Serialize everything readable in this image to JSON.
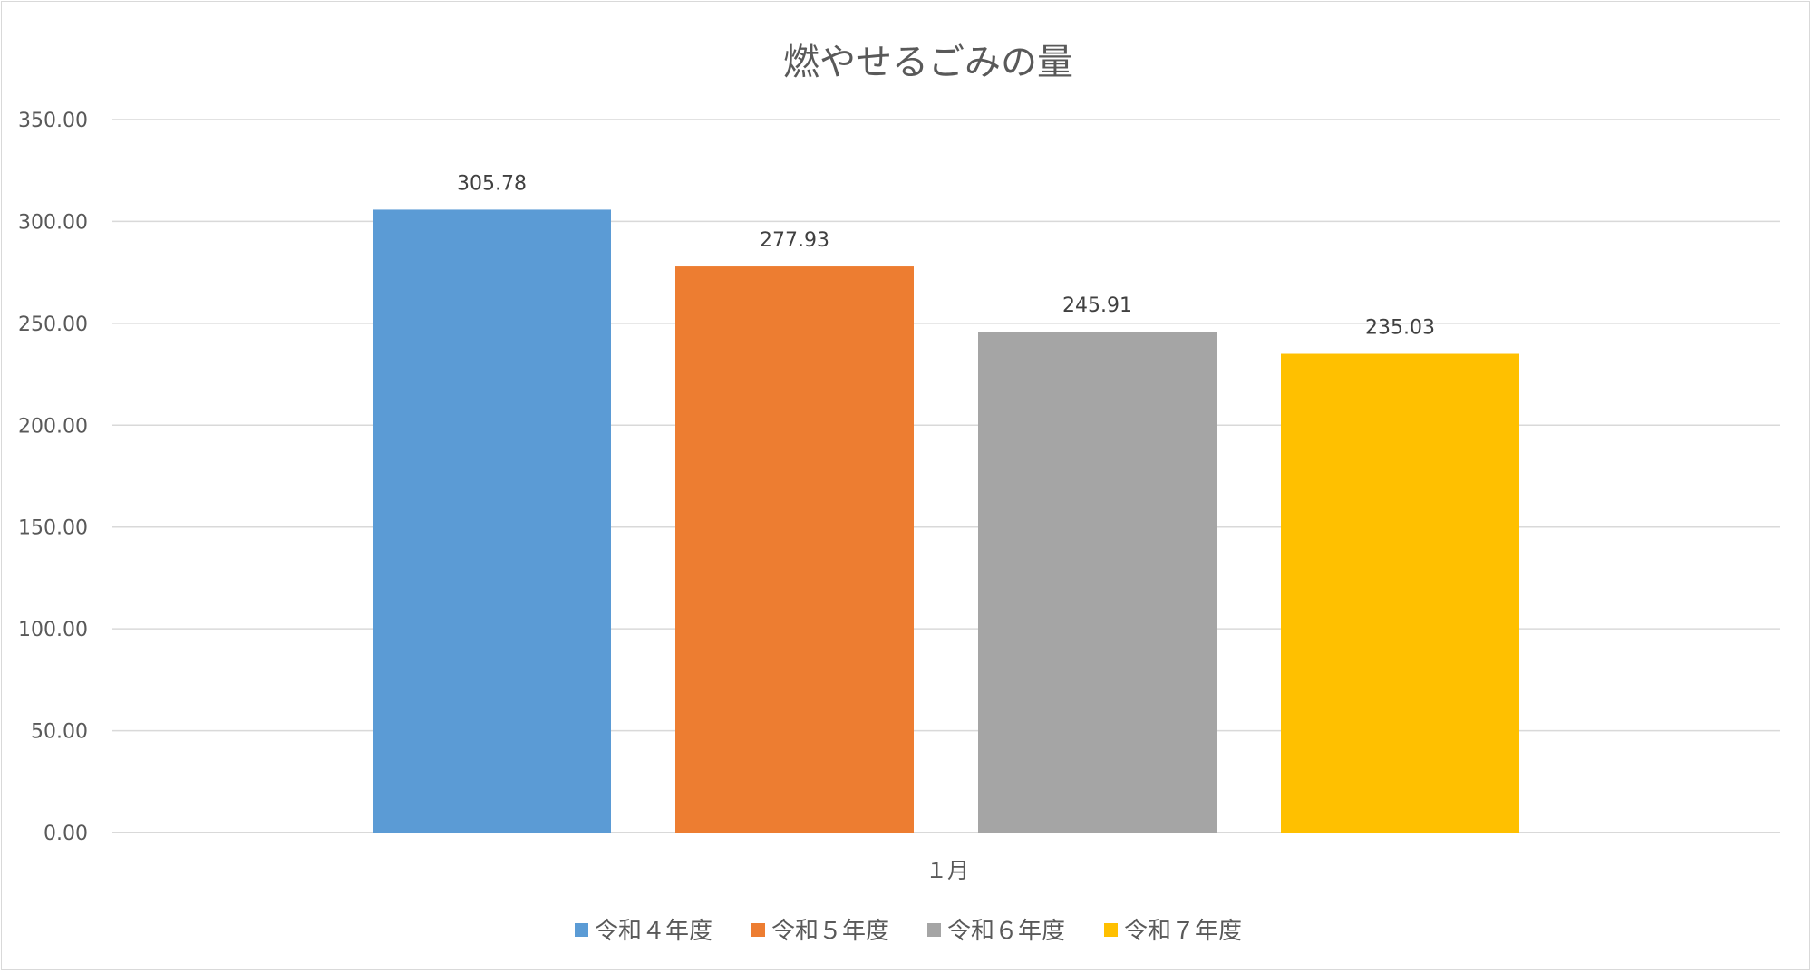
{
  "chart_data": {
    "type": "bar",
    "title": "燃やせるごみの量",
    "categories": [
      "１月"
    ],
    "series": [
      {
        "name": "令和４年度",
        "values": [
          305.78
        ],
        "color": "#5b9bd5",
        "label": "305.78"
      },
      {
        "name": "令和５年度",
        "values": [
          277.93
        ],
        "color": "#ed7d31",
        "label": "277.93"
      },
      {
        "name": "令和６年度",
        "values": [
          245.91
        ],
        "color": "#a5a5a5",
        "label": "245.91"
      },
      {
        "name": "令和７年度",
        "values": [
          235.03
        ],
        "color": "#ffc000",
        "label": "235.03"
      }
    ],
    "yticks": [
      "0.00",
      "50.00",
      "100.00",
      "150.00",
      "200.00",
      "250.00",
      "300.00",
      "350.00"
    ],
    "ylim": [
      0,
      350
    ],
    "grid": true,
    "legend_position": "bottom",
    "xlabel": "",
    "ylabel": ""
  }
}
